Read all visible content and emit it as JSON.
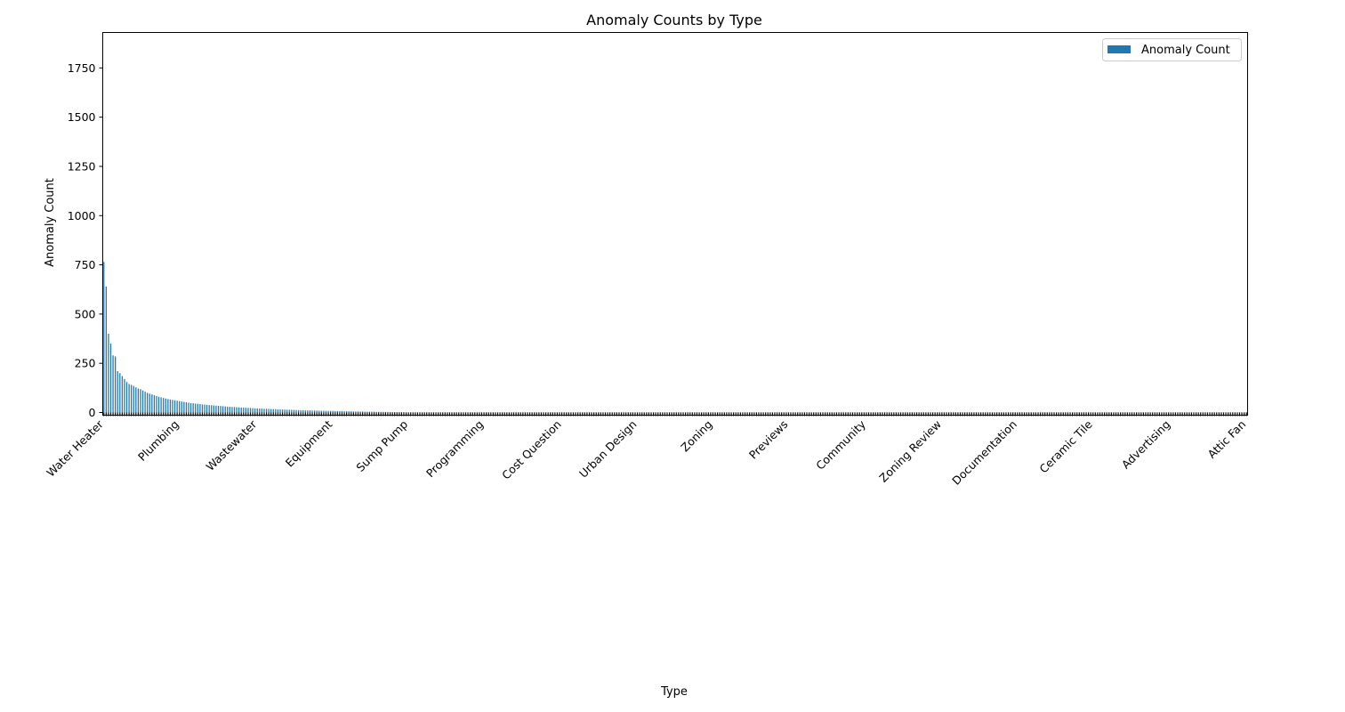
{
  "chart_data": {
    "type": "bar",
    "title": "Anomaly Counts by Type",
    "xlabel": "Type",
    "ylabel": "Anomaly Count",
    "ylim": [
      0,
      1930
    ],
    "yticks": [
      0,
      250,
      500,
      750,
      1000,
      1250,
      1500,
      1750
    ],
    "legend": {
      "position": "top-right",
      "entries": [
        "Anomaly Count"
      ]
    },
    "grid": false,
    "colors": {
      "bar": "#1f77b4",
      "axis": "#000000",
      "background": "#ffffff"
    },
    "category_count": 500,
    "categories_note_visible": false,
    "top_values": [
      765,
      640,
      400,
      350,
      290,
      285,
      210,
      200,
      185,
      170,
      155,
      145,
      140,
      135,
      128,
      122,
      118,
      112,
      106,
      100,
      96,
      92,
      88,
      84,
      80,
      77,
      74,
      71,
      68,
      66,
      64,
      62,
      60,
      58,
      56,
      54,
      52,
      50,
      48,
      47,
      45,
      44,
      43,
      41,
      40,
      39,
      38,
      37,
      36,
      35,
      34,
      33,
      32,
      31,
      30,
      29,
      28,
      28,
      27,
      26,
      25,
      25,
      24,
      23,
      23,
      22,
      21,
      21,
      20,
      20,
      19,
      19,
      18,
      18,
      17,
      17,
      16,
      16,
      15,
      15,
      14,
      14,
      14,
      13,
      13,
      12,
      12,
      12,
      11,
      11,
      11,
      10,
      10,
      10,
      9,
      9,
      9,
      8,
      8,
      8,
      8,
      7,
      7,
      7,
      7,
      6,
      6,
      6,
      6,
      5,
      5,
      5,
      5,
      5,
      4,
      4,
      4,
      4,
      4,
      3,
      3,
      3,
      3,
      3,
      3,
      2,
      2,
      2,
      2,
      2,
      2,
      2,
      1,
      1,
      1,
      1,
      1,
      1,
      1,
      1
    ],
    "tail_value": 1,
    "visible_tick_labels": [
      "Water Heater",
      "Plumbing",
      "Wastewater",
      "Equipment",
      "Sump Pump",
      "Programming",
      "Cost Question",
      "Urban Design",
      "Zoning",
      "Previews",
      "Community",
      "Zoning Review",
      "Documentation",
      "Ceramic Tile",
      "Advertising",
      "Attic Fan"
    ]
  }
}
